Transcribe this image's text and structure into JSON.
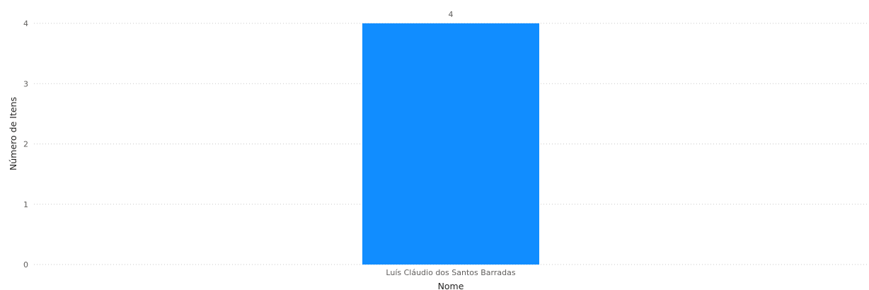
{
  "chart_data": {
    "type": "bar",
    "categories": [
      "Luís Cláudio dos Santos Barradas"
    ],
    "values": [
      4
    ],
    "title": "",
    "xlabel": "Nome",
    "ylabel": "Número de Itens",
    "ylim": [
      0,
      4
    ],
    "y_ticks": [
      0,
      1,
      2,
      3,
      4
    ],
    "data_labels": [
      "4"
    ],
    "grid": true,
    "legend": "none",
    "colors": {
      "bar": "#118dff",
      "gridline": "#c8c8c8",
      "tick_text": "#605e5c",
      "axis_title_text": "#252423"
    }
  }
}
